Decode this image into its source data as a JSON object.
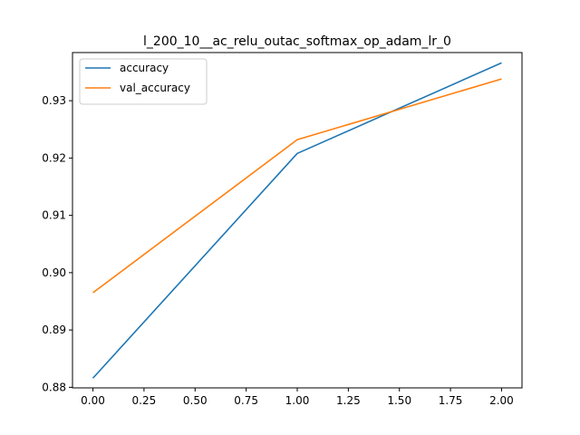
{
  "chart_data": {
    "type": "line",
    "title": "l_200_10__ac_relu_outac_softmax_op_adam_lr_0",
    "xlabel": "",
    "ylabel": "",
    "x": [
      0.0,
      1.0,
      2.0
    ],
    "xlim": [
      -0.1,
      2.1
    ],
    "ylim": [
      0.8799,
      0.9384
    ],
    "xticks": [
      0.0,
      0.25,
      0.5,
      0.75,
      1.0,
      1.25,
      1.5,
      1.75,
      2.0
    ],
    "xtick_labels": [
      "0.00",
      "0.25",
      "0.50",
      "0.75",
      "1.00",
      "1.25",
      "1.50",
      "1.75",
      "2.00"
    ],
    "yticks": [
      0.88,
      0.89,
      0.9,
      0.91,
      0.92,
      0.93
    ],
    "ytick_labels": [
      "0.88",
      "0.89",
      "0.90",
      "0.91",
      "0.92",
      "0.93"
    ],
    "grid": false,
    "legend_position": "top-left",
    "series": [
      {
        "name": "accuracy",
        "color": "#1f77b4",
        "values": [
          0.8816,
          0.9208,
          0.9366
        ]
      },
      {
        "name": "val_accuracy",
        "color": "#ff7f0e",
        "values": [
          0.8965,
          0.9232,
          0.9338
        ]
      }
    ]
  }
}
